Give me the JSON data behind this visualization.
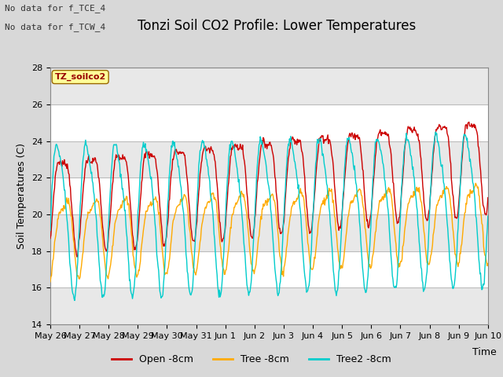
{
  "title": "Tonzi Soil CO2 Profile: Lower Temperatures",
  "ylabel": "Soil Temperatures (C)",
  "xlabel": "Time",
  "annotation1": "No data for f_TCE_4",
  "annotation2": "No data for f_TCW_4",
  "watermark": "TZ_soilco2",
  "ylim": [
    14,
    28
  ],
  "yticks": [
    14,
    16,
    18,
    20,
    22,
    24,
    26,
    28
  ],
  "legend": [
    "Open -8cm",
    "Tree -8cm",
    "Tree2 -8cm"
  ],
  "line_colors": [
    "#cc0000",
    "#ffaa00",
    "#00cccc"
  ],
  "xtick_labels": [
    "May 26",
    "May 27",
    "May 28",
    "May 29",
    "May 30",
    "May 31",
    "Jun 1",
    "Jun 2",
    "Jun 3",
    "Jun 4",
    "Jun 5",
    "Jun 6",
    "Jun 7",
    "Jun 8",
    "Jun 9",
    "Jun 10"
  ],
  "title_fontsize": 12,
  "label_fontsize": 9,
  "tick_fontsize": 8,
  "bg_outer": "#d8d8d8",
  "band_light": "#e8e8e8",
  "band_dark": "#d0d0d0"
}
